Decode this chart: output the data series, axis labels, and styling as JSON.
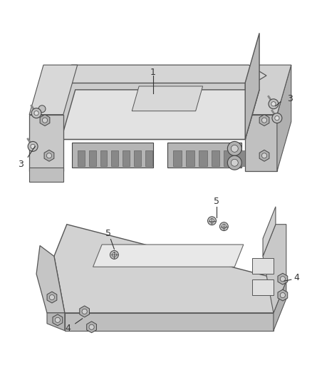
{
  "background_color": "#ffffff",
  "fig_width": 4.38,
  "fig_height": 5.33,
  "dpi": 100,
  "line_color": "#333333",
  "part_edge_color": "#555555",
  "upper_top_color": "#d8d8d8",
  "upper_front_color": "#b8b8b8",
  "upper_side_color": "#a8a8a8",
  "lower_top_color": "#d0d0d0",
  "lower_front_color": "#b0b0b0",
  "lower_side_color": "#a0a0a0",
  "screw_color": "#aaaaaa",
  "screw_edge": "#444444",
  "connector_color": "#999999",
  "connector_pin_color": "#777777"
}
